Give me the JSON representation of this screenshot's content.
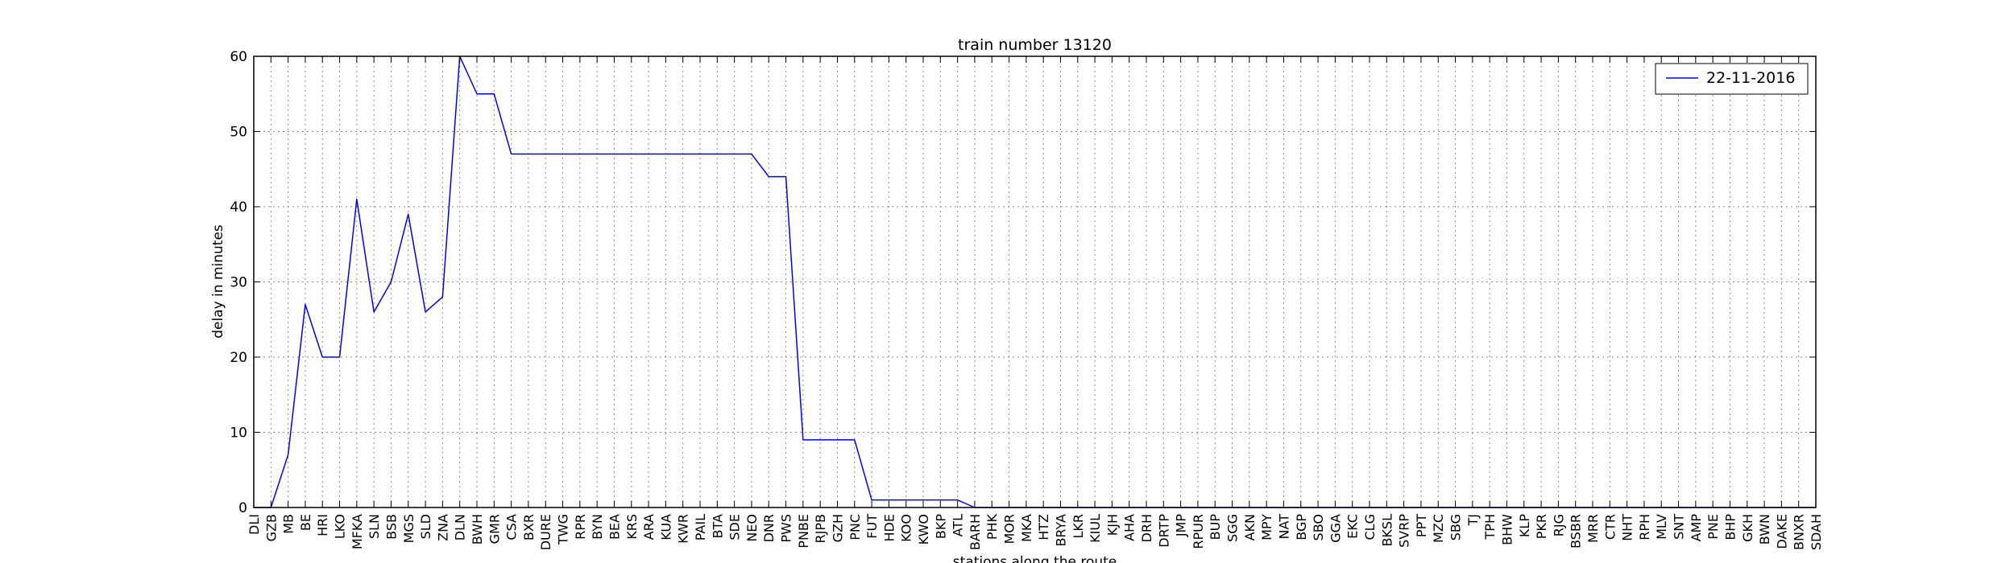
{
  "chart_data": {
    "type": "line",
    "title": "train number 13120",
    "xlabel": "stations along the route",
    "ylabel": "delay in minutes",
    "ylim": [
      0,
      60
    ],
    "yticks": [
      0,
      10,
      20,
      30,
      40,
      50,
      60
    ],
    "grid": true,
    "legend_position": "top-right",
    "categories": [
      "DLI",
      "GZB",
      "MB",
      "BE",
      "HRI",
      "LKO",
      "MFKA",
      "SLN",
      "BSB",
      "MGS",
      "SLD",
      "ZNA",
      "DLN",
      "BWH",
      "GMR",
      "CSA",
      "BXR",
      "DURE",
      "TWG",
      "RPR",
      "BYN",
      "BEA",
      "KRS",
      "ARA",
      "KUA",
      "KWR",
      "PAIL",
      "BTA",
      "SDE",
      "NEO",
      "DNR",
      "PWS",
      "PNBE",
      "RJPB",
      "GZH",
      "PNC",
      "FUT",
      "HDE",
      "KOO",
      "KWO",
      "BKP",
      "ATL",
      "BARH",
      "PHK",
      "MOR",
      "MKA",
      "HTZ",
      "BRYA",
      "LKR",
      "KIUL",
      "KJH",
      "AHA",
      "DRH",
      "DRTP",
      "JMP",
      "RPUR",
      "BUP",
      "SGG",
      "AKN",
      "MPY",
      "NAT",
      "BGP",
      "SBO",
      "GGA",
      "EKC",
      "CLG",
      "BKSL",
      "SVRP",
      "PPT",
      "MZC",
      "SBG",
      "TJ",
      "TPH",
      "BHW",
      "KLP",
      "PKR",
      "RJG",
      "BSBR",
      "MRR",
      "CTR",
      "NHT",
      "RPH",
      "MLV",
      "SNT",
      "AMP",
      "PNE",
      "BHP",
      "GKH",
      "BWN",
      "DAKE",
      "BNXR",
      "SDAH"
    ],
    "series": [
      {
        "name": "22-11-2016",
        "color": "#0000ff",
        "values": [
          0,
          0,
          7,
          27,
          20,
          20,
          41,
          26,
          30,
          39,
          26,
          28,
          60,
          55,
          55,
          47,
          47,
          47,
          47,
          47,
          47,
          47,
          47,
          47,
          47,
          47,
          47,
          47,
          47,
          47,
          44,
          44,
          9,
          9,
          9,
          9,
          1,
          1,
          1,
          1,
          1,
          1,
          0,
          0,
          0,
          0,
          0,
          0,
          0,
          0,
          0,
          0,
          0,
          0,
          0,
          0,
          0,
          0,
          0,
          0,
          0,
          0,
          0,
          0,
          0,
          0,
          0,
          0,
          0,
          0,
          0,
          0,
          0,
          0,
          0,
          0,
          0,
          0,
          0,
          0,
          0,
          0,
          0,
          0,
          0,
          0,
          0,
          0,
          0,
          0,
          0,
          0
        ]
      }
    ]
  }
}
